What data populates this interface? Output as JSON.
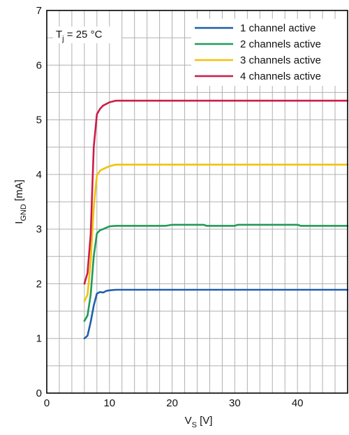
{
  "chart_data": {
    "type": "line",
    "xlabel": "V",
    "xlabel_sub": "S",
    "xlabel_unit": " [V]",
    "ylabel": "I",
    "ylabel_sub": "GND",
    "ylabel_unit": " [mA]",
    "xlim": [
      0,
      48
    ],
    "ylim": [
      0,
      7
    ],
    "x_ticks": [
      0,
      10,
      20,
      30,
      40
    ],
    "x_tick_labels": [
      "0",
      "10",
      "20",
      "30",
      "40"
    ],
    "y_ticks": [
      0,
      1,
      2,
      3,
      4,
      5,
      6,
      7
    ],
    "y_tick_labels": [
      "0",
      "1",
      "2",
      "3",
      "4",
      "5",
      "6",
      "7"
    ],
    "x_minor_step": 2,
    "y_minor_step": 0.5,
    "grid": true,
    "legend_position": "top-right",
    "annotation": {
      "main": "T",
      "sub": "j",
      "rest": " = 25 °C"
    },
    "series": [
      {
        "name": "1 channel active",
        "color": "#1f5fad",
        "points": [
          [
            6,
            1.0
          ],
          [
            6.5,
            1.05
          ],
          [
            7,
            1.3
          ],
          [
            7.5,
            1.6
          ],
          [
            8,
            1.82
          ],
          [
            8.5,
            1.85
          ],
          [
            9,
            1.84
          ],
          [
            9.5,
            1.87
          ],
          [
            10,
            1.88
          ],
          [
            11,
            1.89
          ],
          [
            15,
            1.89
          ],
          [
            20,
            1.89
          ],
          [
            30,
            1.89
          ],
          [
            40,
            1.89
          ],
          [
            48,
            1.89
          ]
        ]
      },
      {
        "name": "2 channels active",
        "color": "#219a58",
        "points": [
          [
            6,
            1.32
          ],
          [
            6.5,
            1.42
          ],
          [
            7,
            1.8
          ],
          [
            7.5,
            2.5
          ],
          [
            8,
            2.92
          ],
          [
            8.5,
            2.98
          ],
          [
            9,
            3.0
          ],
          [
            10,
            3.05
          ],
          [
            11,
            3.06
          ],
          [
            15,
            3.06
          ],
          [
            19,
            3.06
          ],
          [
            20,
            3.08
          ],
          [
            25,
            3.08
          ],
          [
            25.5,
            3.06
          ],
          [
            30,
            3.06
          ],
          [
            30.5,
            3.08
          ],
          [
            40,
            3.08
          ],
          [
            40.5,
            3.06
          ],
          [
            48,
            3.06
          ]
        ]
      },
      {
        "name": "3 channels active",
        "color": "#f2c10a",
        "points": [
          [
            6,
            1.68
          ],
          [
            6.5,
            1.8
          ],
          [
            7,
            2.4
          ],
          [
            7.5,
            3.4
          ],
          [
            8,
            3.98
          ],
          [
            8.5,
            4.07
          ],
          [
            9,
            4.1
          ],
          [
            10,
            4.15
          ],
          [
            11,
            4.18
          ],
          [
            15,
            4.18
          ],
          [
            20,
            4.18
          ],
          [
            30,
            4.18
          ],
          [
            40,
            4.18
          ],
          [
            48,
            4.18
          ]
        ]
      },
      {
        "name": "4 channels active",
        "color": "#cc1c48",
        "points": [
          [
            6,
            2.0
          ],
          [
            6.5,
            2.2
          ],
          [
            7,
            2.9
          ],
          [
            7.5,
            4.5
          ],
          [
            8,
            5.1
          ],
          [
            8.5,
            5.2
          ],
          [
            9,
            5.26
          ],
          [
            10,
            5.32
          ],
          [
            11,
            5.35
          ],
          [
            15,
            5.35
          ],
          [
            20,
            5.35
          ],
          [
            30,
            5.35
          ],
          [
            40,
            5.35
          ],
          [
            48,
            5.35
          ]
        ]
      }
    ]
  }
}
